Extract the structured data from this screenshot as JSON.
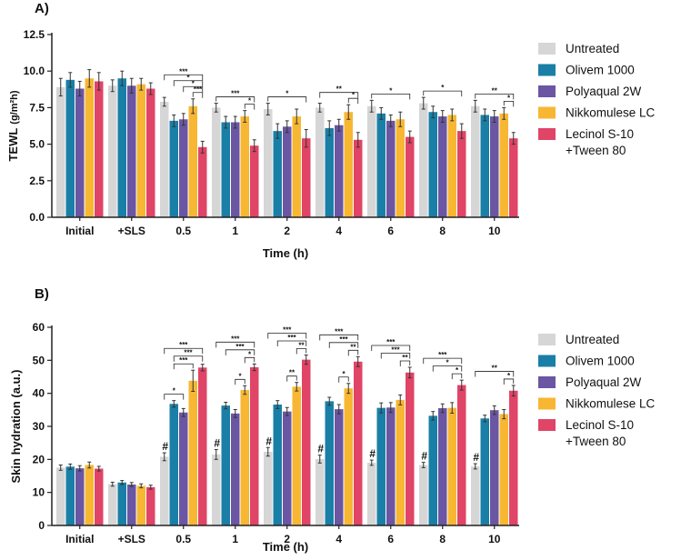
{
  "chart_data": [
    {
      "panel_label": "A)",
      "type": "bar",
      "xlabel": "Time (h)",
      "ylabel": "TEWL",
      "ylabel_units": "(g/m²h)",
      "ylim": [
        0,
        12.5
      ],
      "yticks": [
        0.0,
        2.5,
        5.0,
        7.5,
        10.0,
        12.5
      ],
      "ytick_labels": [
        "0.0",
        "2.5",
        "5.0",
        "7.5",
        "10.0",
        "12.5"
      ],
      "categories": [
        "Initial",
        "+SLS",
        "0.5",
        "1",
        "2",
        "4",
        "6",
        "8",
        "10"
      ],
      "series": [
        {
          "name": "Untreated",
          "values": [
            8.9,
            9.0,
            7.9,
            7.5,
            7.4,
            7.5,
            7.6,
            7.8,
            7.6
          ],
          "errors": [
            0.6,
            0.4,
            0.3,
            0.3,
            0.4,
            0.3,
            0.4,
            0.4,
            0.4
          ]
        },
        {
          "name": "Olivem 1000",
          "values": [
            9.4,
            9.5,
            6.6,
            6.5,
            5.9,
            6.1,
            7.1,
            7.2,
            7.0
          ],
          "errors": [
            0.5,
            0.5,
            0.4,
            0.4,
            0.5,
            0.5,
            0.4,
            0.4,
            0.4
          ]
        },
        {
          "name": "Polyaqual 2W",
          "values": [
            8.8,
            9.0,
            6.7,
            6.5,
            6.2,
            6.3,
            6.6,
            6.9,
            6.9
          ],
          "errors": [
            0.5,
            0.5,
            0.4,
            0.4,
            0.4,
            0.4,
            0.4,
            0.4,
            0.4
          ]
        },
        {
          "name": "Nikkomulese LC",
          "values": [
            9.5,
            9.1,
            7.6,
            6.9,
            6.9,
            7.2,
            6.7,
            7.0,
            7.1
          ],
          "errors": [
            0.6,
            0.4,
            0.5,
            0.4,
            0.5,
            0.5,
            0.5,
            0.4,
            0.4
          ]
        },
        {
          "name": "Lecinol S-10 +Tween 80",
          "values": [
            9.3,
            8.8,
            4.8,
            4.9,
            5.4,
            5.3,
            5.5,
            5.9,
            5.4
          ],
          "errors": [
            0.6,
            0.4,
            0.4,
            0.4,
            0.6,
            0.5,
            0.4,
            0.5,
            0.4
          ]
        }
      ],
      "significance": [
        {
          "category": "0.5",
          "brackets": [
            {
              "from": "Untreated",
              "to": "Lecinol S-10 +Tween 80",
              "label": "***"
            },
            {
              "from": "Olivem 1000",
              "to": "Lecinol S-10 +Tween 80",
              "label": "*"
            },
            {
              "from": "Polyaqual 2W",
              "to": "Lecinol S-10 +Tween 80",
              "label": "*"
            },
            {
              "from": "Nikkomulese LC",
              "to": "Lecinol S-10 +Tween 80",
              "label": "***"
            }
          ]
        },
        {
          "category": "1",
          "brackets": [
            {
              "from": "Untreated",
              "to": "Lecinol S-10 +Tween 80",
              "label": "***"
            },
            {
              "from": "Nikkomulese LC",
              "to": "Lecinol S-10 +Tween 80",
              "label": "*"
            }
          ]
        },
        {
          "category": "2",
          "brackets": [
            {
              "from": "Untreated",
              "to": "Lecinol S-10 +Tween 80",
              "label": "*"
            }
          ]
        },
        {
          "category": "4",
          "brackets": [
            {
              "from": "Untreated",
              "to": "Lecinol S-10 +Tween 80",
              "label": "**"
            },
            {
              "from": "Nikkomulese LC",
              "to": "Lecinol S-10 +Tween 80",
              "label": "*"
            }
          ]
        },
        {
          "category": "6",
          "brackets": [
            {
              "from": "Untreated",
              "to": "Lecinol S-10 +Tween 80",
              "label": "*"
            }
          ]
        },
        {
          "category": "8",
          "brackets": [
            {
              "from": "Untreated",
              "to": "Lecinol S-10 +Tween 80",
              "label": "*"
            }
          ]
        },
        {
          "category": "10",
          "brackets": [
            {
              "from": "Untreated",
              "to": "Lecinol S-10 +Tween 80",
              "label": "**"
            },
            {
              "from": "Nikkomulese LC",
              "to": "Lecinol S-10 +Tween 80",
              "label": "*"
            }
          ]
        }
      ],
      "hash_marks": []
    },
    {
      "panel_label": "B)",
      "type": "bar",
      "xlabel": "Time (h)",
      "ylabel": "Skin hydration (a.u.)",
      "ylabel_units": "",
      "ylim": [
        0,
        60
      ],
      "yticks": [
        0,
        10,
        20,
        30,
        40,
        50,
        60
      ],
      "ytick_labels": [
        "0",
        "10",
        "20",
        "30",
        "40",
        "50",
        "60"
      ],
      "categories": [
        "Initial",
        "+SLS",
        "0.5",
        "1",
        "2",
        "4",
        "6",
        "8",
        "10"
      ],
      "series": [
        {
          "name": "Untreated",
          "values": [
            17.5,
            12.5,
            20.8,
            21.5,
            22.3,
            20.1,
            19.0,
            18.3,
            17.9
          ],
          "errors": [
            0.8,
            0.6,
            1.2,
            1.5,
            1.3,
            1.2,
            0.8,
            0.8,
            0.8
          ]
        },
        {
          "name": "Olivem 1000",
          "values": [
            17.8,
            13.0,
            36.8,
            36.3,
            36.6,
            37.6,
            35.6,
            33.2,
            32.4
          ],
          "errors": [
            0.8,
            0.6,
            1.0,
            1.0,
            1.2,
            1.2,
            1.5,
            1.3,
            1.0
          ]
        },
        {
          "name": "Polyaqual 2W",
          "values": [
            17.3,
            12.4,
            34.2,
            33.9,
            34.5,
            35.2,
            35.7,
            35.5,
            34.9
          ],
          "errors": [
            0.8,
            0.6,
            1.2,
            1.2,
            1.2,
            1.4,
            1.5,
            1.3,
            1.3
          ]
        },
        {
          "name": "Nikkomulese LC",
          "values": [
            18.3,
            12.0,
            43.8,
            41.0,
            42.0,
            41.5,
            38.0,
            35.6,
            33.7
          ],
          "errors": [
            0.9,
            0.6,
            3.2,
            1.3,
            1.3,
            1.5,
            1.5,
            1.6,
            1.4
          ]
        },
        {
          "name": "Lecinol S-10 +Tween 80",
          "values": [
            17.2,
            11.6,
            47.8,
            47.9,
            50.2,
            49.6,
            46.3,
            42.5,
            40.8
          ],
          "errors": [
            0.7,
            0.6,
            1.0,
            1.0,
            1.4,
            1.5,
            1.6,
            1.5,
            1.6
          ]
        }
      ],
      "significance": [
        {
          "category": "0.5",
          "brackets": [
            {
              "from": "Untreated",
              "to": "Lecinol S-10 +Tween 80",
              "label": "***"
            },
            {
              "from": "Olivem 1000",
              "to": "Lecinol S-10 +Tween 80",
              "label": "***"
            },
            {
              "from": "Untreated",
              "to": "Polyaqual 2W",
              "label": "*"
            },
            {
              "from": "Olivem 1000",
              "to": "Nikkomulese LC",
              "label": "***"
            }
          ]
        },
        {
          "category": "1",
          "brackets": [
            {
              "from": "Untreated",
              "to": "Lecinol S-10 +Tween 80",
              "label": "***"
            },
            {
              "from": "Olivem 1000",
              "to": "Lecinol S-10 +Tween 80",
              "label": "***"
            },
            {
              "from": "Polyaqual 2W",
              "to": "Nikkomulese LC",
              "label": "*"
            },
            {
              "from": "Nikkomulese LC",
              "to": "Lecinol S-10 +Tween 80",
              "label": "*"
            }
          ]
        },
        {
          "category": "2",
          "brackets": [
            {
              "from": "Untreated",
              "to": "Lecinol S-10 +Tween 80",
              "label": "***"
            },
            {
              "from": "Olivem 1000",
              "to": "Lecinol S-10 +Tween 80",
              "label": "***"
            },
            {
              "from": "Polyaqual 2W",
              "to": "Nikkomulese LC",
              "label": "**"
            },
            {
              "from": "Nikkomulese LC",
              "to": "Lecinol S-10 +Tween 80",
              "label": "**"
            }
          ]
        },
        {
          "category": "4",
          "brackets": [
            {
              "from": "Untreated",
              "to": "Lecinol S-10 +Tween 80",
              "label": "***"
            },
            {
              "from": "Olivem 1000",
              "to": "Lecinol S-10 +Tween 80",
              "label": "***"
            },
            {
              "from": "Polyaqual 2W",
              "to": "Nikkomulese LC",
              "label": "*"
            },
            {
              "from": "Nikkomulese LC",
              "to": "Lecinol S-10 +Tween 80",
              "label": "**"
            }
          ]
        },
        {
          "category": "6",
          "brackets": [
            {
              "from": "Untreated",
              "to": "Lecinol S-10 +Tween 80",
              "label": "***"
            },
            {
              "from": "Olivem 1000",
              "to": "Lecinol S-10 +Tween 80",
              "label": "***"
            },
            {
              "from": "Nikkomulese LC",
              "to": "Lecinol S-10 +Tween 80",
              "label": "**"
            }
          ]
        },
        {
          "category": "8",
          "brackets": [
            {
              "from": "Untreated",
              "to": "Lecinol S-10 +Tween 80",
              "label": "***"
            },
            {
              "from": "Olivem 1000",
              "to": "Lecinol S-10 +Tween 80",
              "label": "*"
            },
            {
              "from": "Nikkomulese LC",
              "to": "Lecinol S-10 +Tween 80",
              "label": "*"
            }
          ]
        },
        {
          "category": "10",
          "brackets": [
            {
              "from": "Untreated",
              "to": "Lecinol S-10 +Tween 80",
              "label": "**"
            },
            {
              "from": "Nikkomulese LC",
              "to": "Lecinol S-10 +Tween 80",
              "label": "*"
            }
          ]
        }
      ],
      "hash_marks": {
        "symbol": "#",
        "series": "Untreated",
        "categories": [
          "0.5",
          "1",
          "2",
          "4",
          "6",
          "8",
          "10"
        ]
      }
    }
  ],
  "legend": {
    "items": [
      {
        "label": "Untreated",
        "color": "#d6d6d6"
      },
      {
        "label": "Olivem 1000",
        "color": "#1a7fa6"
      },
      {
        "label": "Polyaqual 2W",
        "color": "#6a56a2"
      },
      {
        "label": "Nikkomulese LC",
        "color": "#f7b733"
      },
      {
        "label": "Lecinol S-10",
        "label_line2": "+Tween 80",
        "color": "#e04466"
      }
    ]
  },
  "colors": {
    "axis": "#222222",
    "error_bar": "#333333",
    "text": "#111111"
  }
}
